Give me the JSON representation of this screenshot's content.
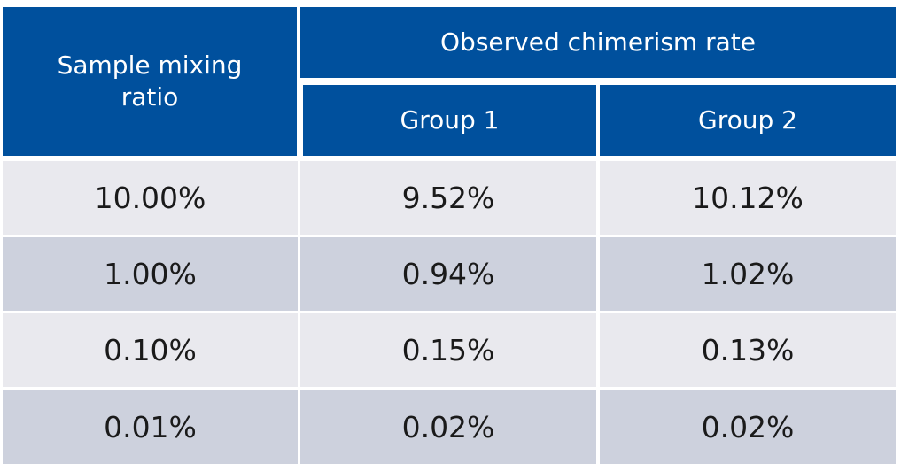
{
  "table": {
    "header": {
      "col1": "Sample mixing ratio",
      "group_span": "Observed chimerism rate",
      "group1": "Group 1",
      "group2": "Group 2"
    },
    "rows": [
      {
        "ratio": "10.00%",
        "g1": "9.52%",
        "g2": "10.12%"
      },
      {
        "ratio": "1.00%",
        "g1": "0.94%",
        "g2": "1.02%"
      },
      {
        "ratio": "0.10%",
        "g1": "0.15%",
        "g2": "0.13%"
      },
      {
        "ratio": "0.01%",
        "g1": "0.02%",
        "g2": "0.02%"
      }
    ],
    "colors": {
      "header_bg": "#00509d",
      "header_text": "#ffffff",
      "row_light": "#e9e9ee",
      "row_dark": "#cdd1dd"
    }
  }
}
